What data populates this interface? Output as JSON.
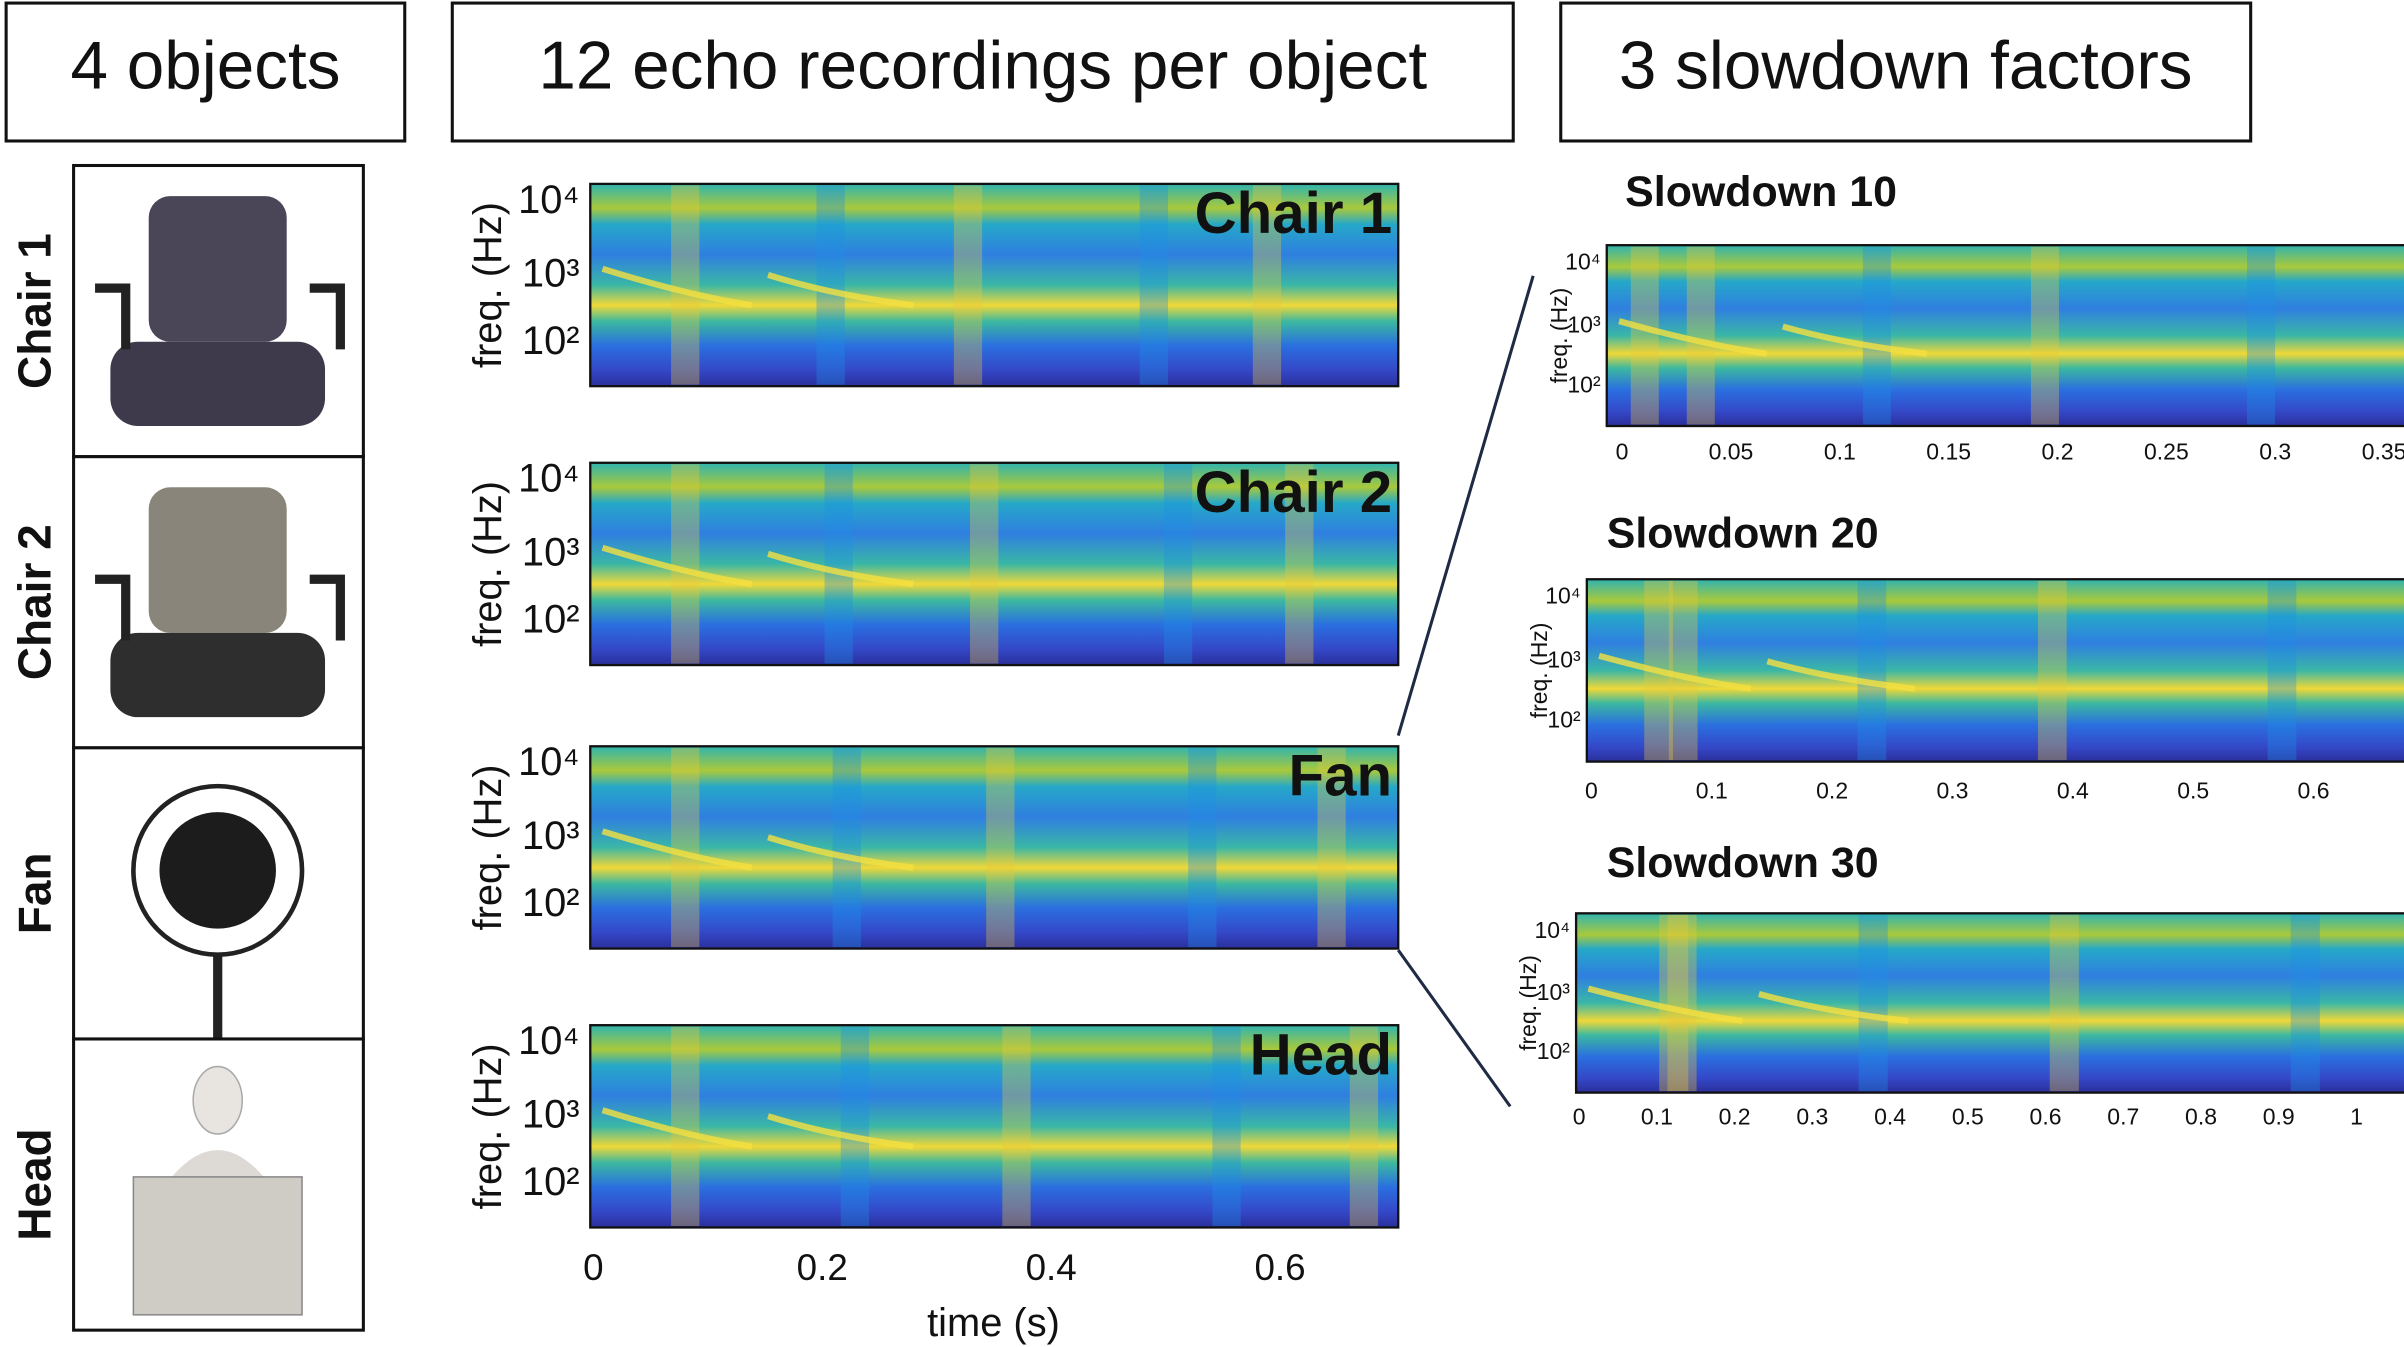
{
  "headers": [
    "4 objects",
    "12 echo recordings per object",
    "3 slowdown factors"
  ],
  "objects": [
    "Chair 1",
    "Chair 2",
    "Fan",
    "Head"
  ],
  "recordings": {
    "ylabel": "freq. (Hz)",
    "yticks": [
      "10⁴",
      "10³",
      "10²"
    ],
    "xlabel": "time (s)",
    "xticks": [
      "0",
      "0.2",
      "0.4",
      "0.6"
    ]
  },
  "slowdowns": [
    {
      "title": "Slowdown 10",
      "ylabel": "freq. (Hz)",
      "yticks": [
        "10⁴",
        "10³",
        "10²"
      ],
      "xticks": [
        "0",
        "0.05",
        "0.1",
        "0.15",
        "0.2",
        "0.25",
        "0.3",
        "0.35"
      ]
    },
    {
      "title": "Slowdown 20",
      "ylabel": "freq. (Hz)",
      "yticks": [
        "10⁴",
        "10³",
        "10²"
      ],
      "xticks": [
        "0",
        "0.1",
        "0.2",
        "0.3",
        "0.4",
        "0.5",
        "0.6"
      ]
    },
    {
      "title": "Slowdown 30",
      "ylabel": "freq. (Hz)",
      "yticks": [
        "10⁴",
        "10³",
        "10²"
      ],
      "xticks": [
        "0",
        "0.1",
        "0.2",
        "0.3",
        "0.4",
        "0.5",
        "0.6",
        "0.7",
        "0.8",
        "0.9",
        "1"
      ]
    }
  ]
}
